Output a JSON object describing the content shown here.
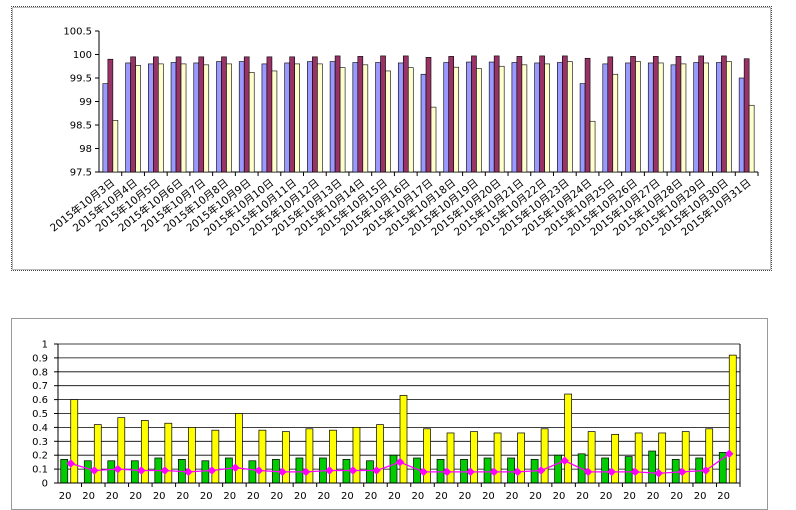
{
  "chart_data": [
    {
      "type": "bar",
      "title": "",
      "xlabel": "",
      "ylabel": "",
      "ylim": [
        97.5,
        100.5
      ],
      "yticks": [
        "100.5",
        "100",
        "99.5",
        "99",
        "98.5",
        "98",
        "97.5"
      ],
      "grid": false,
      "categories": [
        "2015年10月3日",
        "2015年10月4日",
        "2015年10月5日",
        "2015年10月6日",
        "2015年10月7日",
        "2015年10月8日",
        "2015年10月9日",
        "2015年10月10日",
        "2015年10月11日",
        "2015年10月12日",
        "2015年10月13日",
        "2015年10月14日",
        "2015年10月15日",
        "2015年10月16日",
        "2015年10月17日",
        "2015年10月18日",
        "2015年10月19日",
        "2015年10月20日",
        "2015年10月21日",
        "2015年10月22日",
        "2015年10月23日",
        "2015年10月24日",
        "2015年10月25日",
        "2015年10月26日",
        "2015年10月27日",
        "2015年10月28日",
        "2015年10月29日",
        "2015年10月30日",
        "2015年10月31日"
      ],
      "series": [
        {
          "color": "#9999ff",
          "values": [
            99.38,
            99.82,
            99.8,
            99.83,
            99.82,
            99.85,
            99.85,
            99.8,
            99.82,
            99.85,
            99.85,
            99.83,
            99.83,
            99.82,
            99.58,
            99.83,
            99.84,
            99.84,
            99.83,
            99.82,
            99.83,
            99.38,
            99.8,
            99.82,
            99.82,
            99.78,
            99.83,
            99.83,
            99.5
          ]
        },
        {
          "color": "#993366",
          "values": [
            99.9,
            99.95,
            99.95,
            99.95,
            99.95,
            99.95,
            99.95,
            99.95,
            99.95,
            99.95,
            99.97,
            99.96,
            99.97,
            99.97,
            99.94,
            99.96,
            99.97,
            99.97,
            99.96,
            99.97,
            99.97,
            99.92,
            99.95,
            99.96,
            99.96,
            99.96,
            99.97,
            99.97,
            99.91
          ]
        },
        {
          "color": "#ffffcc",
          "values": [
            98.6,
            99.77,
            99.8,
            99.8,
            99.78,
            99.8,
            99.62,
            99.65,
            99.8,
            99.8,
            99.72,
            99.78,
            99.65,
            99.72,
            98.88,
            99.73,
            99.7,
            99.75,
            99.78,
            99.8,
            99.85,
            98.58,
            99.58,
            99.85,
            99.82,
            99.8,
            99.82,
            99.85,
            98.92
          ]
        }
      ]
    },
    {
      "type": "bar",
      "title": "",
      "xlabel": "",
      "ylabel": "",
      "ylim": [
        0,
        1
      ],
      "yticks": [
        "1",
        "0.9",
        "0.8",
        "0.7",
        "0.6",
        "0.5",
        "0.4",
        "0.3",
        "0.2",
        "0.1",
        "0"
      ],
      "grid": true,
      "x_tick_visible": [
        "20",
        "20",
        "20",
        "20",
        "20",
        "20",
        "20",
        "20",
        "20",
        "20",
        "20",
        "20",
        "20",
        "20",
        "20",
        "20",
        "20",
        "20",
        "20",
        "20",
        "20",
        "20",
        "20",
        "20",
        "20",
        "20",
        "20",
        "20",
        "20"
      ],
      "series": [
        {
          "type": "bar",
          "color": "#00cc00",
          "values": [
            0.17,
            0.16,
            0.16,
            0.16,
            0.18,
            0.17,
            0.16,
            0.18,
            0.16,
            0.17,
            0.18,
            0.18,
            0.17,
            0.16,
            0.2,
            0.18,
            0.17,
            0.17,
            0.18,
            0.18,
            0.17,
            0.2,
            0.21,
            0.18,
            0.19,
            0.23,
            0.17,
            0.18,
            0.22
          ]
        },
        {
          "type": "bar",
          "color": "#ffff00",
          "values": [
            0.6,
            0.42,
            0.47,
            0.45,
            0.43,
            0.4,
            0.38,
            0.5,
            0.38,
            0.37,
            0.39,
            0.38,
            0.4,
            0.42,
            0.63,
            0.39,
            0.36,
            0.37,
            0.36,
            0.36,
            0.39,
            0.64,
            0.37,
            0.35,
            0.36,
            0.36,
            0.37,
            0.39,
            0.92
          ]
        },
        {
          "type": "line",
          "color": "#ff00ff",
          "values": [
            0.14,
            0.09,
            0.1,
            0.09,
            0.09,
            0.08,
            0.09,
            0.11,
            0.09,
            0.08,
            0.08,
            0.09,
            0.09,
            0.09,
            0.15,
            0.08,
            0.08,
            0.08,
            0.08,
            0.08,
            0.09,
            0.16,
            0.08,
            0.08,
            0.08,
            0.07,
            0.08,
            0.09,
            0.21
          ]
        }
      ]
    }
  ]
}
